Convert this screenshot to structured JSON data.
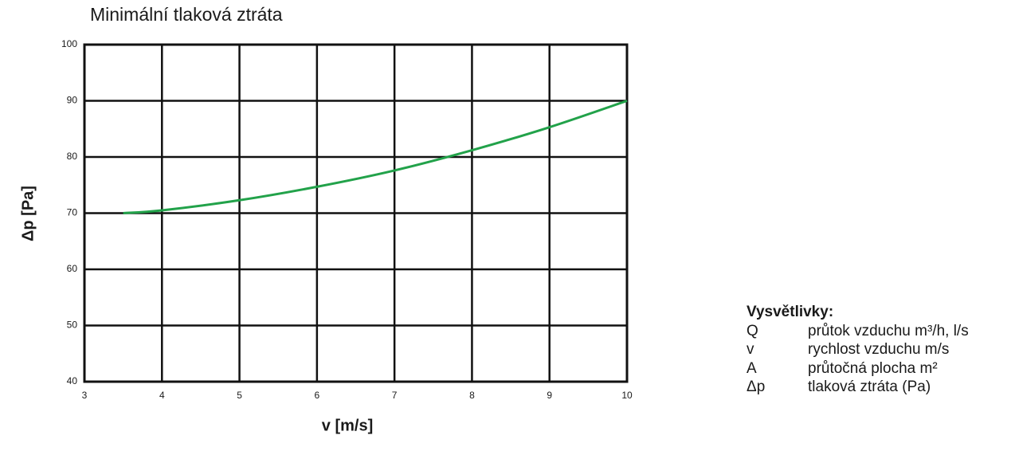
{
  "chart_data": {
    "type": "line",
    "title": "Minimální tlaková ztráta",
    "x_label": "v [m/s]",
    "y_label": "Δp [Pa]",
    "x": [
      3.5,
      4,
      5,
      6,
      7,
      8,
      9,
      10
    ],
    "values": [
      70,
      70.5,
      72.3,
      74.7,
      77.6,
      81.2,
      85.3,
      90
    ],
    "color": "#22a24a",
    "xlim": [
      3,
      10
    ],
    "xticks": [
      3,
      4,
      5,
      6,
      7,
      8,
      9,
      10
    ],
    "ylim": [
      40,
      100
    ],
    "yticks": [
      40,
      50,
      60,
      70,
      80,
      90,
      100
    ],
    "grid": true
  },
  "notes": {
    "title": "Vysvětlivky:",
    "rows": [
      [
        "Q",
        "průtok vzduchu m³/h, l/s"
      ],
      [
        "v",
        "rychlost vzduchu m/s"
      ],
      [
        "A",
        "průtočná plocha m²"
      ],
      [
        "Δp",
        "tlaková ztráta (Pa)"
      ]
    ]
  }
}
